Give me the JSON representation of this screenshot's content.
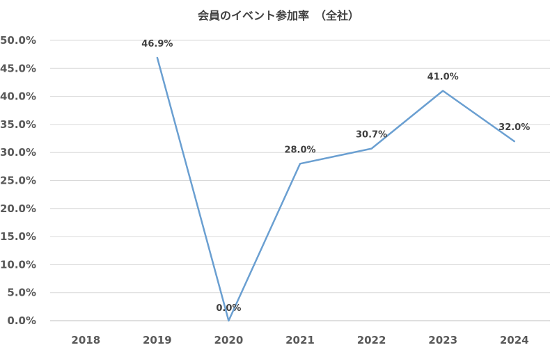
{
  "chart_data": {
    "type": "line",
    "title": "会員のイベント参加率　（全社）",
    "xlabel": "",
    "ylabel": "",
    "categories": [
      "2018",
      "2019",
      "2020",
      "2021",
      "2022",
      "2023",
      "2024"
    ],
    "series": [
      {
        "values": [
          null,
          46.9,
          0.0,
          28.0,
          30.7,
          41.0,
          32.0
        ],
        "data_labels": [
          "",
          "46.9%",
          "0.0%",
          "28.0%",
          "30.7%",
          "41.0%",
          "32.0%"
        ],
        "color": "#6a9fd1"
      }
    ],
    "ylim": [
      0,
      50
    ],
    "yticks": [
      "0.0%",
      "5.0%",
      "10.0%",
      "15.0%",
      "20.0%",
      "25.0%",
      "30.0%",
      "35.0%",
      "40.0%",
      "45.0%",
      "50.0%"
    ],
    "ytick_values": [
      0,
      5,
      10,
      15,
      20,
      25,
      30,
      35,
      40,
      45,
      50
    ],
    "grid": true,
    "legend": "none"
  }
}
